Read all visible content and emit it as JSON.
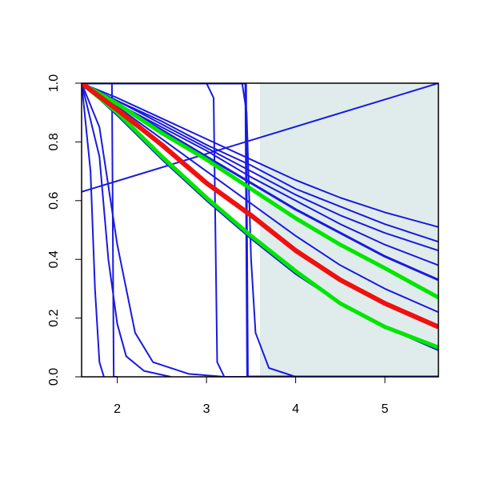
{
  "chart_data": {
    "type": "line",
    "xlim": [
      1.6,
      5.6
    ],
    "ylim": [
      0,
      1
    ],
    "xticks": [
      2,
      3,
      4,
      5
    ],
    "yticks": [
      {
        "value": 0,
        "label": "0.0"
      },
      0.2,
      0.4,
      0.6,
      0.8,
      {
        "value": 1,
        "label": "1.0"
      }
    ],
    "shaded_region": {
      "xlim": [
        3.6,
        5.6
      ],
      "color": "#e0ecec"
    },
    "x": [
      1.6,
      2.0,
      2.5,
      3.0,
      3.5,
      4.0,
      4.5,
      5.0,
      5.6
    ],
    "series": [
      {
        "color": "#1a1ae0",
        "width": 2,
        "values": [
          1,
          0.95,
          0.88,
          0.81,
          0.74,
          0.67,
          0.61,
          0.56,
          0.51
        ]
      },
      {
        "color": "#1a1ae0",
        "width": 2,
        "values": [
          1,
          0.94,
          0.87,
          0.79,
          0.72,
          0.64,
          0.58,
          0.52,
          0.46
        ]
      },
      {
        "color": "#1a1ae0",
        "width": 2,
        "values": [
          1,
          0.94,
          0.86,
          0.78,
          0.7,
          0.62,
          0.55,
          0.49,
          0.43
        ]
      },
      {
        "color": "#1a1ae0",
        "width": 2,
        "values": [
          1,
          0.93,
          0.85,
          0.77,
          0.68,
          0.6,
          0.52,
          0.45,
          0.38
        ]
      },
      {
        "color": "#1a1ae0",
        "width": 3,
        "values": [
          1,
          0.93,
          0.84,
          0.75,
          0.66,
          0.57,
          0.49,
          0.41,
          0.33
        ]
      },
      {
        "color": "#1a1ae0",
        "width": 2,
        "values": [
          1,
          0.92,
          0.81,
          0.7,
          0.59,
          0.48,
          0.38,
          0.3,
          0.22
        ]
      },
      {
        "color": "#1a1ae0",
        "width": 2,
        "values": [
          1,
          0.89,
          0.74,
          0.6,
          0.47,
          0.35,
          0.25,
          0.17,
          0.09
        ]
      },
      {
        "color": "#1a1ae0",
        "width": 2,
        "x": [
          1.6,
          5.6
        ],
        "values": [
          0.63,
          1
        ]
      },
      {
        "color": "#1a1ae0",
        "width": 2,
        "x": [
          1.6,
          1.7,
          1.75,
          1.8,
          1.85
        ],
        "values": [
          1,
          0.7,
          0.3,
          0.05,
          0
        ]
      },
      {
        "color": "#1a1ae0",
        "width": 2,
        "x": [
          1.6,
          1.8,
          1.9,
          2.0,
          2.1,
          2.3,
          2.6
        ],
        "values": [
          1,
          0.75,
          0.4,
          0.18,
          0.07,
          0.02,
          0
        ]
      },
      {
        "color": "#1a1ae0",
        "width": 2,
        "x": [
          1.6,
          1.8,
          2.0,
          2.2,
          2.4,
          2.8,
          3.2
        ],
        "values": [
          1,
          0.85,
          0.45,
          0.15,
          0.05,
          0.01,
          0
        ]
      },
      {
        "color": "#1a1ae0",
        "width": 2,
        "x": [
          1.6,
          1.94,
          1.96,
          2.0
        ],
        "values": [
          1,
          1,
          0,
          0
        ]
      },
      {
        "color": "#1a1ae0",
        "width": 2,
        "x": [
          1.6,
          3.0,
          3.08,
          3.1,
          3.12,
          3.2,
          5.6
        ],
        "values": [
          1,
          1,
          0.95,
          0.5,
          0.05,
          0,
          0
        ]
      },
      {
        "color": "#1a1ae0",
        "width": 2,
        "x": [
          1.6,
          3.4,
          3.45,
          3.5,
          3.55,
          3.7,
          4.0,
          4.5
        ],
        "values": [
          1,
          1,
          0.9,
          0.4,
          0.15,
          0.03,
          0,
          0
        ]
      },
      {
        "color": "#1a1ae0",
        "width": 3,
        "x": [
          1.6,
          3.44,
          3.46,
          5.6
        ],
        "values": [
          1,
          1,
          0,
          0
        ]
      },
      {
        "color": "#00e600",
        "width": 5,
        "values": [
          1,
          0.93,
          0.83,
          0.74,
          0.64,
          0.54,
          0.45,
          0.37,
          0.27
        ]
      },
      {
        "color": "#00e600",
        "width": 5,
        "values": [
          1,
          0.9,
          0.75,
          0.61,
          0.48,
          0.36,
          0.25,
          0.17,
          0.1
        ]
      },
      {
        "color": "#f01010",
        "width": 6,
        "values": [
          1,
          0.91,
          0.79,
          0.66,
          0.55,
          0.43,
          0.33,
          0.25,
          0.17
        ]
      }
    ]
  }
}
